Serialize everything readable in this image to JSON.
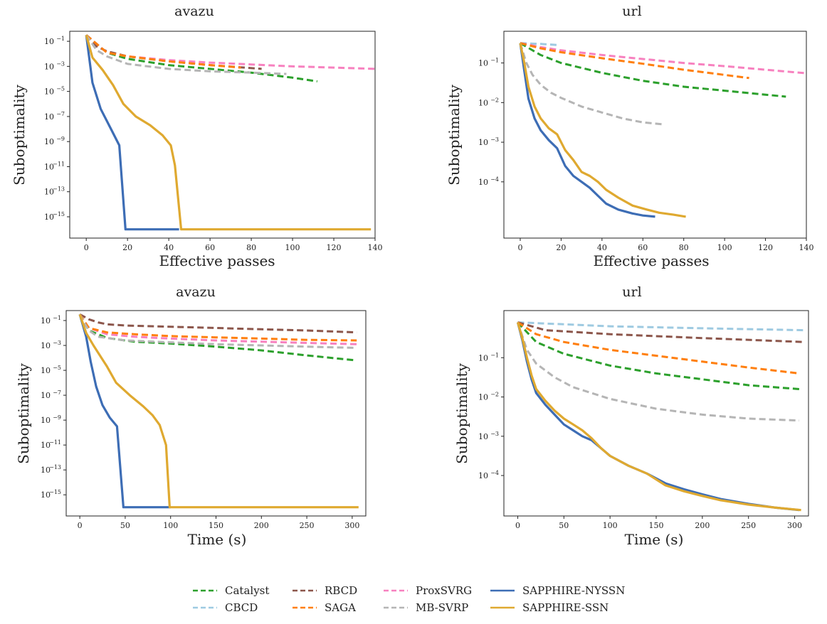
{
  "chart_data": [
    {
      "type": "line",
      "title": "avazu",
      "xlabel": "Effective passes",
      "ylabel": "Suboptimality",
      "yscale": "log",
      "xlim": [
        -8,
        140
      ],
      "ylim_exp": [
        -16.7,
        -0.2
      ],
      "xticks": [
        0,
        20,
        40,
        60,
        80,
        100,
        120,
        140
      ],
      "yticks_exp": [
        -1,
        -3,
        -5,
        -7,
        -9,
        -11,
        -13,
        -15
      ],
      "ytick_labels": [
        "10^-1",
        "10^-3",
        "10^-5",
        "10^-7",
        "10^-9",
        "10^-11",
        "10^-13",
        "10^-15"
      ],
      "series": [
        {
          "name": "Catalyst",
          "x": [
            0,
            10,
            20,
            40,
            60,
            80,
            100,
            112
          ],
          "y_exp": [
            -0.5,
            -1.9,
            -2.4,
            -2.9,
            -3.2,
            -3.5,
            -3.9,
            -4.2
          ]
        },
        {
          "name": "RBCD",
          "x": [
            0,
            5,
            10,
            20,
            40,
            60,
            85
          ],
          "y_exp": [
            -0.5,
            -1.4,
            -1.8,
            -2.2,
            -2.6,
            -2.9,
            -3.2
          ]
        },
        {
          "name": "ProxSVRG",
          "x": [
            0,
            10,
            20,
            40,
            60,
            80,
            100,
            120,
            140
          ],
          "y_exp": [
            -0.5,
            -1.9,
            -2.2,
            -2.5,
            -2.7,
            -2.85,
            -3.0,
            -3.1,
            -3.2
          ]
        },
        {
          "name": "SAGA",
          "x": [
            0,
            10,
            20,
            40,
            60,
            75
          ],
          "y_exp": [
            -0.5,
            -1.9,
            -2.2,
            -2.6,
            -2.9,
            -3.1
          ]
        },
        {
          "name": "MB-SVRP",
          "x": [
            0,
            5,
            10,
            20,
            40,
            60,
            80,
            97
          ],
          "y_exp": [
            -0.5,
            -1.7,
            -2.2,
            -2.8,
            -3.2,
            -3.4,
            -3.5,
            -3.6
          ]
        },
        {
          "name": "SAPPHIRE-NYSSN",
          "x": [
            0,
            3,
            7,
            12,
            16,
            19,
            45
          ],
          "y_exp": [
            -0.5,
            -4.3,
            -6.4,
            -8.0,
            -9.3,
            -16.0,
            -16.0
          ]
        },
        {
          "name": "SAPPHIRE-SSN",
          "x": [
            0,
            3,
            8,
            13,
            18,
            24,
            31,
            37,
            41,
            43,
            46,
            138
          ],
          "y_exp": [
            -0.5,
            -2.3,
            -3.3,
            -4.5,
            -6.0,
            -7.0,
            -7.7,
            -8.5,
            -9.3,
            -10.9,
            -16.0,
            -16.0
          ]
        }
      ]
    },
    {
      "type": "line",
      "title": "url",
      "xlabel": "Effective passes",
      "ylabel": "Suboptimality",
      "yscale": "log",
      "xlim": [
        -8,
        140
      ],
      "ylim_exp": [
        -5.42,
        -0.2
      ],
      "xticks": [
        0,
        20,
        40,
        60,
        80,
        100,
        120,
        140
      ],
      "yticks_exp": [
        -1,
        -2,
        -3,
        -4
      ],
      "ytick_labels": [
        "10^-1",
        "10^-2",
        "10^-3",
        "10^-4"
      ],
      "series": [
        {
          "name": "Catalyst",
          "x": [
            0,
            10,
            20,
            40,
            60,
            80,
            100,
            130
          ],
          "y_exp": [
            -0.5,
            -0.8,
            -1.0,
            -1.25,
            -1.45,
            -1.6,
            -1.7,
            -1.85
          ]
        },
        {
          "name": "CBCD",
          "x": [
            0,
            10,
            19
          ],
          "y_exp": [
            -0.5,
            -0.52,
            -0.55
          ]
        },
        {
          "name": "RBCD",
          "x": [
            0,
            5,
            10
          ],
          "y_exp": [
            -0.5,
            -0.55,
            -0.62
          ]
        },
        {
          "name": "ProxSVRG",
          "x": [
            0,
            10,
            20,
            40,
            60,
            80,
            100,
            120,
            140
          ],
          "y_exp": [
            -0.5,
            -0.6,
            -0.68,
            -0.8,
            -0.9,
            -1.0,
            -1.08,
            -1.17,
            -1.26
          ]
        },
        {
          "name": "SAGA",
          "x": [
            0,
            10,
            20,
            40,
            60,
            80,
            112
          ],
          "y_exp": [
            -0.5,
            -0.63,
            -0.73,
            -0.88,
            -1.02,
            -1.17,
            -1.38
          ]
        },
        {
          "name": "MB-SVRP",
          "x": [
            0,
            3,
            6,
            10,
            15,
            20,
            30,
            40,
            50,
            60,
            70
          ],
          "y_exp": [
            -0.5,
            -1.0,
            -1.3,
            -1.55,
            -1.75,
            -1.88,
            -2.1,
            -2.25,
            -2.4,
            -2.5,
            -2.55
          ]
        },
        {
          "name": "SAPPHIRE-NYSSN",
          "x": [
            0,
            2,
            4,
            7,
            10,
            14,
            18,
            22,
            26,
            30,
            34,
            38,
            42,
            48,
            55,
            60,
            66
          ],
          "y_exp": [
            -0.5,
            -1.2,
            -1.9,
            -2.4,
            -2.7,
            -2.95,
            -3.15,
            -3.6,
            -3.85,
            -4.0,
            -4.15,
            -4.35,
            -4.55,
            -4.7,
            -4.8,
            -4.85,
            -4.88
          ]
        },
        {
          "name": "SAPPHIRE-SSN",
          "x": [
            0,
            2,
            4,
            7,
            10,
            14,
            18,
            22,
            26,
            30,
            34,
            38,
            42,
            48,
            55,
            62,
            68,
            75,
            81
          ],
          "y_exp": [
            -0.5,
            -1.0,
            -1.6,
            -2.1,
            -2.4,
            -2.65,
            -2.8,
            -3.2,
            -3.45,
            -3.75,
            -3.85,
            -4.0,
            -4.2,
            -4.4,
            -4.6,
            -4.7,
            -4.78,
            -4.83,
            -4.88
          ]
        }
      ]
    },
    {
      "type": "line",
      "title": "avazu",
      "xlabel": "Time (s)",
      "ylabel": "Suboptimality",
      "yscale": "log",
      "xlim": [
        -15,
        315
      ],
      "ylim_exp": [
        -16.7,
        -0.2
      ],
      "xticks": [
        0,
        50,
        100,
        150,
        200,
        250,
        300
      ],
      "yticks_exp": [
        -1,
        -3,
        -5,
        -7,
        -9,
        -11,
        -13,
        -15
      ],
      "ytick_labels": [
        "10^-1",
        "10^-3",
        "10^-5",
        "10^-7",
        "10^-9",
        "10^-11",
        "10^-13",
        "10^-15"
      ],
      "series": [
        {
          "name": "Catalyst",
          "x": [
            0,
            10,
            30,
            60,
            100,
            150,
            200,
            250,
            305
          ],
          "y_exp": [
            -0.5,
            -1.8,
            -2.4,
            -2.7,
            -2.85,
            -3.1,
            -3.4,
            -3.8,
            -4.2
          ]
        },
        {
          "name": "RBCD",
          "x": [
            0,
            10,
            20,
            30,
            50,
            100,
            150,
            200,
            250,
            305
          ],
          "y_exp": [
            -0.5,
            -0.9,
            -1.15,
            -1.3,
            -1.4,
            -1.5,
            -1.6,
            -1.7,
            -1.8,
            -1.95
          ]
        },
        {
          "name": "ProxSVRG",
          "x": [
            0,
            10,
            30,
            60,
            100,
            150,
            200,
            250,
            305
          ],
          "y_exp": [
            -0.5,
            -1.6,
            -2.1,
            -2.3,
            -2.45,
            -2.6,
            -2.7,
            -2.8,
            -2.9
          ]
        },
        {
          "name": "SAGA",
          "x": [
            0,
            10,
            30,
            60,
            100,
            150,
            200,
            250,
            305
          ],
          "y_exp": [
            -0.5,
            -1.6,
            -1.95,
            -2.1,
            -2.25,
            -2.35,
            -2.45,
            -2.55,
            -2.6
          ]
        },
        {
          "name": "MB-SVRP",
          "x": [
            0,
            5,
            10,
            20,
            50,
            100,
            150,
            200,
            250,
            305
          ],
          "y_exp": [
            -0.5,
            -1.2,
            -1.8,
            -2.3,
            -2.6,
            -2.75,
            -2.9,
            -3.0,
            -3.1,
            -3.2
          ]
        },
        {
          "name": "SAPPHIRE-NYSSN",
          "x": [
            0,
            7,
            12,
            18,
            25,
            33,
            41,
            48,
            100
          ],
          "y_exp": [
            -0.5,
            -2.3,
            -4.3,
            -6.3,
            -7.8,
            -8.8,
            -9.5,
            -16.0,
            -16.0
          ]
        },
        {
          "name": "SAPPHIRE-SSN",
          "x": [
            0,
            7,
            15,
            30,
            40,
            55,
            70,
            80,
            88,
            95,
            99,
            307
          ],
          "y_exp": [
            -0.5,
            -2.0,
            -3.0,
            -4.7,
            -6.0,
            -7.0,
            -7.9,
            -8.6,
            -9.4,
            -11.0,
            -16.0,
            -16.0
          ]
        }
      ]
    },
    {
      "type": "line",
      "title": "url",
      "xlabel": "Time (s)",
      "ylabel": "Suboptimality",
      "yscale": "log",
      "xlim": [
        -15,
        315
      ],
      "ylim_exp": [
        -5.03,
        0.2
      ],
      "xticks": [
        0,
        50,
        100,
        150,
        200,
        250,
        300
      ],
      "yticks_exp": [
        -1,
        -2,
        -3,
        -4
      ],
      "ytick_labels": [
        "10^-1",
        "10^-2",
        "10^-3",
        "10^-4"
      ],
      "series": [
        {
          "name": "Catalyst",
          "x": [
            0,
            20,
            50,
            100,
            150,
            200,
            250,
            305
          ],
          "y_exp": [
            -0.1,
            -0.6,
            -0.9,
            -1.2,
            -1.4,
            -1.55,
            -1.7,
            -1.8
          ]
        },
        {
          "name": "CBCD",
          "x": [
            0,
            50,
            100,
            200,
            310
          ],
          "y_exp": [
            -0.1,
            -0.15,
            -0.2,
            -0.25,
            -0.3
          ]
        },
        {
          "name": "RBCD",
          "x": [
            0,
            30,
            100,
            200,
            310
          ],
          "y_exp": [
            -0.1,
            -0.3,
            -0.4,
            -0.5,
            -0.6
          ]
        },
        {
          "name": "SAGA",
          "x": [
            0,
            20,
            50,
            100,
            150,
            200,
            250,
            305
          ],
          "y_exp": [
            -0.1,
            -0.4,
            -0.6,
            -0.8,
            -0.95,
            -1.1,
            -1.25,
            -1.4
          ]
        },
        {
          "name": "MB-SVRP",
          "x": [
            0,
            10,
            20,
            40,
            60,
            80,
            100,
            150,
            200,
            250,
            305
          ],
          "y_exp": [
            -0.1,
            -0.8,
            -1.15,
            -1.5,
            -1.75,
            -1.9,
            -2.05,
            -2.3,
            -2.45,
            -2.55,
            -2.6
          ]
        },
        {
          "name": "SAPPHIRE-NYSSN",
          "x": [
            0,
            5,
            10,
            15,
            20,
            30,
            40,
            50,
            60,
            70,
            80,
            90,
            100,
            120,
            140,
            160,
            180,
            200,
            220,
            250,
            280,
            305
          ],
          "y_exp": [
            -0.1,
            -0.55,
            -1.1,
            -1.55,
            -1.9,
            -2.2,
            -2.45,
            -2.7,
            -2.85,
            -3.0,
            -3.1,
            -3.3,
            -3.5,
            -3.75,
            -3.95,
            -4.2,
            -4.35,
            -4.48,
            -4.6,
            -4.72,
            -4.82,
            -4.88
          ]
        },
        {
          "name": "SAPPHIRE-SSN",
          "x": [
            0,
            5,
            10,
            15,
            20,
            30,
            40,
            50,
            60,
            70,
            80,
            90,
            100,
            120,
            140,
            160,
            180,
            200,
            220,
            250,
            280,
            307
          ],
          "y_exp": [
            -0.1,
            -0.5,
            -1.0,
            -1.45,
            -1.8,
            -2.1,
            -2.35,
            -2.55,
            -2.7,
            -2.85,
            -3.05,
            -3.3,
            -3.5,
            -3.75,
            -3.95,
            -4.25,
            -4.4,
            -4.52,
            -4.63,
            -4.74,
            -4.82,
            -4.88
          ]
        }
      ]
    }
  ],
  "legend": {
    "items": [
      {
        "name": "Catalyst",
        "color": "#2ca02c",
        "dash": true
      },
      {
        "name": "CBCD",
        "color": "#9ecae1",
        "dash": true
      },
      {
        "name": "RBCD",
        "color": "#8c564b",
        "dash": true
      },
      {
        "name": "SAGA",
        "color": "#ff7f0e",
        "dash": true
      },
      {
        "name": "ProxSVRG",
        "color": "#f781bf",
        "dash": true
      },
      {
        "name": "MB-SVRP",
        "color": "#b5b5b5",
        "dash": true
      },
      {
        "name": "SAPPHIRE-NYSSN",
        "color": "#3d6db5",
        "dash": false
      },
      {
        "name": "SAPPHIRE-SSN",
        "color": "#dfa930",
        "dash": false
      }
    ]
  }
}
